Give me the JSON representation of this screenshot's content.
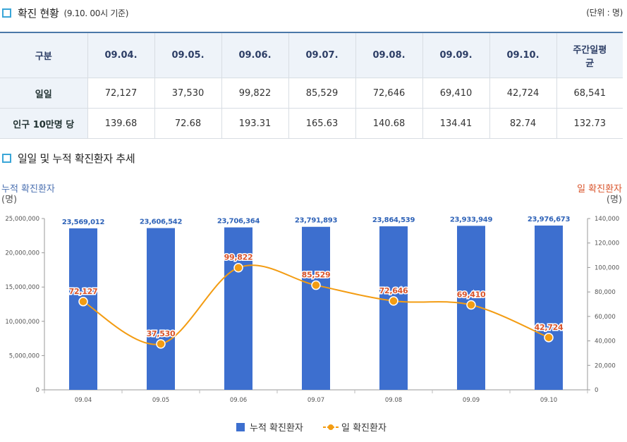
{
  "section1": {
    "title": "확진 현황",
    "subtitle": "(9.10. 00시 기준)",
    "unit": "(단위 : 명)"
  },
  "table": {
    "corner_header": "구분",
    "columns": [
      "09.04.",
      "09.05.",
      "09.06.",
      "09.07.",
      "09.08.",
      "09.09.",
      "09.10.",
      "주간일평균"
    ],
    "rows": [
      {
        "label": "일일",
        "values": [
          "72,127",
          "37,530",
          "99,822",
          "85,529",
          "72,646",
          "69,410",
          "42,724",
          "68,541"
        ]
      },
      {
        "label": "인구 10만명 당",
        "values": [
          "139.68",
          "72.68",
          "193.31",
          "165.63",
          "140.68",
          "134.41",
          "82.74",
          "132.73"
        ]
      }
    ]
  },
  "section2": {
    "title": "일일 및 누적 확진환자 추세"
  },
  "chart_data": {
    "type": "bar+line",
    "title": "일일 및 누적 확진환자 추세",
    "categories": [
      "09.04",
      "09.05",
      "09.06",
      "09.07",
      "09.08",
      "09.09",
      "09.10"
    ],
    "series": [
      {
        "name": "누적 확진환자",
        "type": "bar",
        "axis": "left",
        "color": "#3d6fcf",
        "values": [
          23569012,
          23606542,
          23706364,
          23791893,
          23864539,
          23933949,
          23976673
        ],
        "labels": [
          "23,569,012",
          "23,606,542",
          "23,706,364",
          "23,791,893",
          "23,864,539",
          "23,933,949",
          "23,976,673"
        ]
      },
      {
        "name": "일 확진환자",
        "type": "line",
        "axis": "right",
        "color": "#f39c12",
        "values": [
          72127,
          37530,
          99822,
          85529,
          72646,
          69410,
          42724
        ],
        "labels": [
          "72,127",
          "37,530",
          "99,822",
          "85,529",
          "72,646",
          "69,410",
          "42,724"
        ]
      }
    ],
    "left_axis": {
      "label": "누적 확진환자",
      "unit": "(명)",
      "color": "#4a6fb0",
      "range": [
        0,
        25000000
      ],
      "ticks": [
        0,
        5000000,
        10000000,
        15000000,
        20000000,
        25000000
      ],
      "tick_labels": [
        "0",
        "5,000,000",
        "10,000,000",
        "15,000,000",
        "20,000,000",
        "25,000,000"
      ]
    },
    "right_axis": {
      "label": "일 확진환자",
      "unit": "(명)",
      "color": "#d9542b",
      "range": [
        0,
        140000
      ],
      "ticks": [
        0,
        20000,
        40000,
        60000,
        80000,
        100000,
        120000,
        140000
      ],
      "tick_labels": [
        "0",
        "20,000",
        "40,000",
        "60,000",
        "80,000",
        "100,000",
        "120,000",
        "140,000"
      ]
    },
    "label_colors": {
      "bar": "#2f63b8",
      "line": "#d9542b"
    },
    "legend": {
      "position": "bottom-center",
      "items": [
        "누적 확진환자",
        "일 확진환자"
      ]
    }
  }
}
